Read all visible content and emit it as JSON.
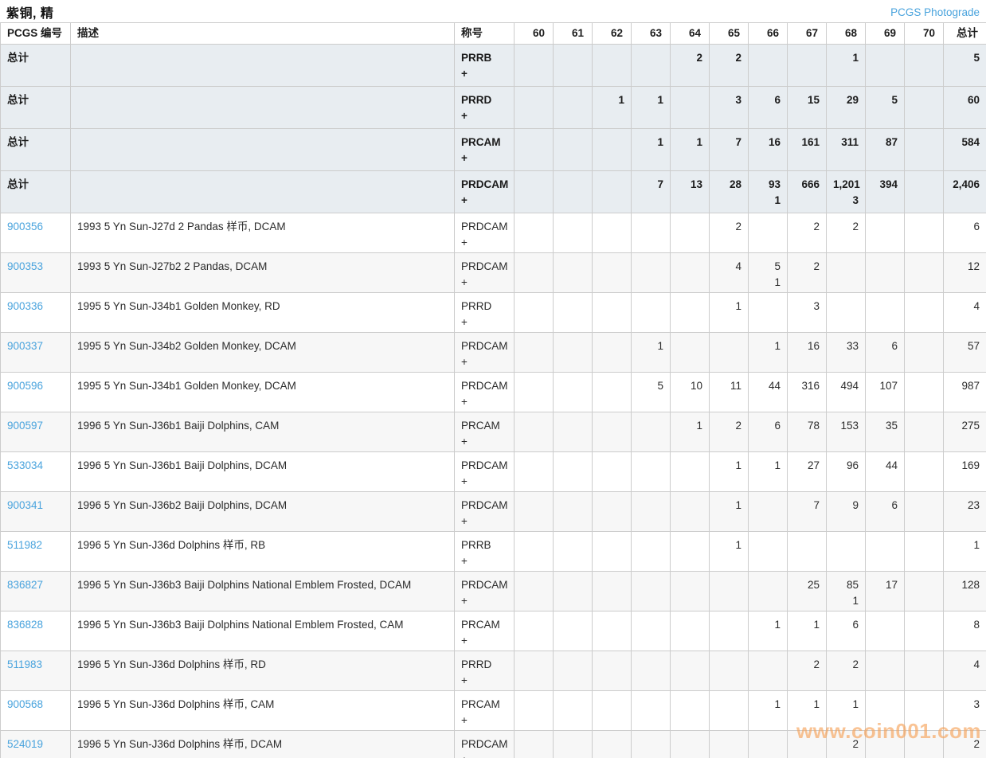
{
  "page": {
    "title": "紫铜, 精",
    "top_link": "PCGS Photograde",
    "watermark": "www.coin001.com"
  },
  "colors": {
    "link_blue": "#49a3dd",
    "total_row_bg": "#e8edf1",
    "alt_row_bg": "#f7f7f7",
    "border": "#cccccc",
    "watermark_orange": "rgba(246,158,82,0.62)"
  },
  "table": {
    "headers": {
      "pcgs": "PCGS 编号",
      "desc": "描述",
      "designation": "称号",
      "total": "总计"
    },
    "grade_columns": [
      "60",
      "61",
      "62",
      "63",
      "64",
      "65",
      "66",
      "67",
      "68",
      "69",
      "70"
    ],
    "total_row_label": "总计",
    "plus_sign": "+",
    "rows": [
      {
        "type": "total",
        "pcgs": "总计",
        "desc": "",
        "designation": "PRRB",
        "plus": "+",
        "values": [
          "",
          "",
          "",
          "",
          "2",
          "2",
          "",
          "",
          "1",
          "",
          ""
        ],
        "plus_values": [
          "",
          "",
          "",
          "",
          "",
          "",
          "",
          "",
          "",
          "",
          ""
        ],
        "total": "5"
      },
      {
        "type": "total",
        "pcgs": "总计",
        "desc": "",
        "designation": "PRRD",
        "plus": "+",
        "values": [
          "",
          "",
          "1",
          "1",
          "",
          "3",
          "6",
          "15",
          "29",
          "5",
          ""
        ],
        "plus_values": [
          "",
          "",
          "",
          "",
          "",
          "",
          "",
          "",
          "",
          "",
          ""
        ],
        "total": "60"
      },
      {
        "type": "total",
        "pcgs": "总计",
        "desc": "",
        "designation": "PRCAM",
        "plus": "+",
        "values": [
          "",
          "",
          "",
          "1",
          "1",
          "7",
          "16",
          "161",
          "311",
          "87",
          ""
        ],
        "plus_values": [
          "",
          "",
          "",
          "",
          "",
          "",
          "",
          "",
          "",
          "",
          ""
        ],
        "total": "584"
      },
      {
        "type": "total",
        "pcgs": "总计",
        "desc": "",
        "designation": "PRDCAM",
        "plus": "+",
        "values": [
          "",
          "",
          "",
          "7",
          "13",
          "28",
          "93",
          "666",
          "1,201",
          "394",
          ""
        ],
        "plus_values": [
          "",
          "",
          "",
          "",
          "",
          "",
          "1",
          "",
          "3",
          "",
          ""
        ],
        "total": "2,406"
      },
      {
        "type": "item",
        "pcgs": "900356",
        "desc": "1993 5 Yn Sun-J27d 2 Pandas 样币, DCAM",
        "designation": "PRDCAM",
        "plus": "+",
        "values": [
          "",
          "",
          "",
          "",
          "",
          "2",
          "",
          "2",
          "2",
          "",
          ""
        ],
        "plus_values": [
          "",
          "",
          "",
          "",
          "",
          "",
          "",
          "",
          "",
          "",
          ""
        ],
        "total": "6"
      },
      {
        "type": "item",
        "pcgs": "900353",
        "desc": "1993 5 Yn Sun-J27b2 2 Pandas, DCAM",
        "designation": "PRDCAM",
        "plus": "+",
        "values": [
          "",
          "",
          "",
          "",
          "",
          "4",
          "5",
          "2",
          "",
          "",
          ""
        ],
        "plus_values": [
          "",
          "",
          "",
          "",
          "",
          "",
          "1",
          "",
          "",
          "",
          ""
        ],
        "total": "12"
      },
      {
        "type": "item",
        "pcgs": "900336",
        "desc": "1995 5 Yn Sun-J34b1 Golden Monkey, RD",
        "designation": "PRRD",
        "plus": "+",
        "values": [
          "",
          "",
          "",
          "",
          "",
          "1",
          "",
          "3",
          "",
          "",
          ""
        ],
        "plus_values": [
          "",
          "",
          "",
          "",
          "",
          "",
          "",
          "",
          "",
          "",
          ""
        ],
        "total": "4"
      },
      {
        "type": "item",
        "pcgs": "900337",
        "desc": "1995 5 Yn Sun-J34b2 Golden Monkey, DCAM",
        "designation": "PRDCAM",
        "plus": "+",
        "values": [
          "",
          "",
          "",
          "1",
          "",
          "",
          "1",
          "16",
          "33",
          "6",
          ""
        ],
        "plus_values": [
          "",
          "",
          "",
          "",
          "",
          "",
          "",
          "",
          "",
          "",
          ""
        ],
        "total": "57"
      },
      {
        "type": "item",
        "pcgs": "900596",
        "desc": "1995 5 Yn Sun-J34b1 Golden Monkey, DCAM",
        "designation": "PRDCAM",
        "plus": "+",
        "values": [
          "",
          "",
          "",
          "5",
          "10",
          "11",
          "44",
          "316",
          "494",
          "107",
          ""
        ],
        "plus_values": [
          "",
          "",
          "",
          "",
          "",
          "",
          "",
          "",
          "",
          "",
          ""
        ],
        "total": "987"
      },
      {
        "type": "item",
        "pcgs": "900597",
        "desc": "1996 5 Yn Sun-J36b1 Baiji Dolphins, CAM",
        "designation": "PRCAM",
        "plus": "+",
        "values": [
          "",
          "",
          "",
          "",
          "1",
          "2",
          "6",
          "78",
          "153",
          "35",
          ""
        ],
        "plus_values": [
          "",
          "",
          "",
          "",
          "",
          "",
          "",
          "",
          "",
          "",
          ""
        ],
        "total": "275"
      },
      {
        "type": "item",
        "pcgs": "533034",
        "desc": "1996 5 Yn Sun-J36b1 Baiji Dolphins, DCAM",
        "designation": "PRDCAM",
        "plus": "+",
        "values": [
          "",
          "",
          "",
          "",
          "",
          "1",
          "1",
          "27",
          "96",
          "44",
          ""
        ],
        "plus_values": [
          "",
          "",
          "",
          "",
          "",
          "",
          "",
          "",
          "",
          "",
          ""
        ],
        "total": "169"
      },
      {
        "type": "item",
        "pcgs": "900341",
        "desc": "1996 5 Yn Sun-J36b2 Baiji Dolphins, DCAM",
        "designation": "PRDCAM",
        "plus": "+",
        "values": [
          "",
          "",
          "",
          "",
          "",
          "1",
          "",
          "7",
          "9",
          "6",
          ""
        ],
        "plus_values": [
          "",
          "",
          "",
          "",
          "",
          "",
          "",
          "",
          "",
          "",
          ""
        ],
        "total": "23"
      },
      {
        "type": "item",
        "pcgs": "511982",
        "desc": "1996 5 Yn Sun-J36d Dolphins 样币, RB",
        "designation": "PRRB",
        "plus": "+",
        "values": [
          "",
          "",
          "",
          "",
          "",
          "1",
          "",
          "",
          "",
          "",
          ""
        ],
        "plus_values": [
          "",
          "",
          "",
          "",
          "",
          "",
          "",
          "",
          "",
          "",
          ""
        ],
        "total": "1"
      },
      {
        "type": "item",
        "pcgs": "836827",
        "desc": "1996 5 Yn Sun-J36b3 Baiji Dolphins National Emblem Frosted, DCAM",
        "designation": "PRDCAM",
        "plus": "+",
        "values": [
          "",
          "",
          "",
          "",
          "",
          "",
          "",
          "25",
          "85",
          "17",
          ""
        ],
        "plus_values": [
          "",
          "",
          "",
          "",
          "",
          "",
          "",
          "",
          "1",
          "",
          ""
        ],
        "total": "128"
      },
      {
        "type": "item",
        "pcgs": "836828",
        "desc": "1996 5 Yn Sun-J36b3 Baiji Dolphins National Emblem Frosted, CAM",
        "designation": "PRCAM",
        "plus": "+",
        "values": [
          "",
          "",
          "",
          "",
          "",
          "",
          "1",
          "1",
          "6",
          "",
          ""
        ],
        "plus_values": [
          "",
          "",
          "",
          "",
          "",
          "",
          "",
          "",
          "",
          "",
          ""
        ],
        "total": "8"
      },
      {
        "type": "item",
        "pcgs": "511983",
        "desc": "1996 5 Yn Sun-J36d Dolphins 样币, RD",
        "designation": "PRRD",
        "plus": "+",
        "values": [
          "",
          "",
          "",
          "",
          "",
          "",
          "",
          "2",
          "2",
          "",
          ""
        ],
        "plus_values": [
          "",
          "",
          "",
          "",
          "",
          "",
          "",
          "",
          "",
          "",
          ""
        ],
        "total": "4"
      },
      {
        "type": "item",
        "pcgs": "900568",
        "desc": "1996 5 Yn Sun-J36d Dolphins 样币, CAM",
        "designation": "PRCAM",
        "plus": "+",
        "values": [
          "",
          "",
          "",
          "",
          "",
          "",
          "1",
          "1",
          "1",
          "",
          ""
        ],
        "plus_values": [
          "",
          "",
          "",
          "",
          "",
          "",
          "",
          "",
          "",
          "",
          ""
        ],
        "total": "3"
      },
      {
        "type": "item",
        "pcgs": "524019",
        "desc": "1996 5 Yn Sun-J36d Dolphins 样币, DCAM",
        "designation": "PRDCAM",
        "plus": "+",
        "values": [
          "",
          "",
          "",
          "",
          "",
          "",
          "",
          "",
          "2",
          "",
          ""
        ],
        "plus_values": [
          "",
          "",
          "",
          "",
          "",
          "",
          "",
          "",
          "",
          "",
          ""
        ],
        "total": "2"
      }
    ]
  }
}
